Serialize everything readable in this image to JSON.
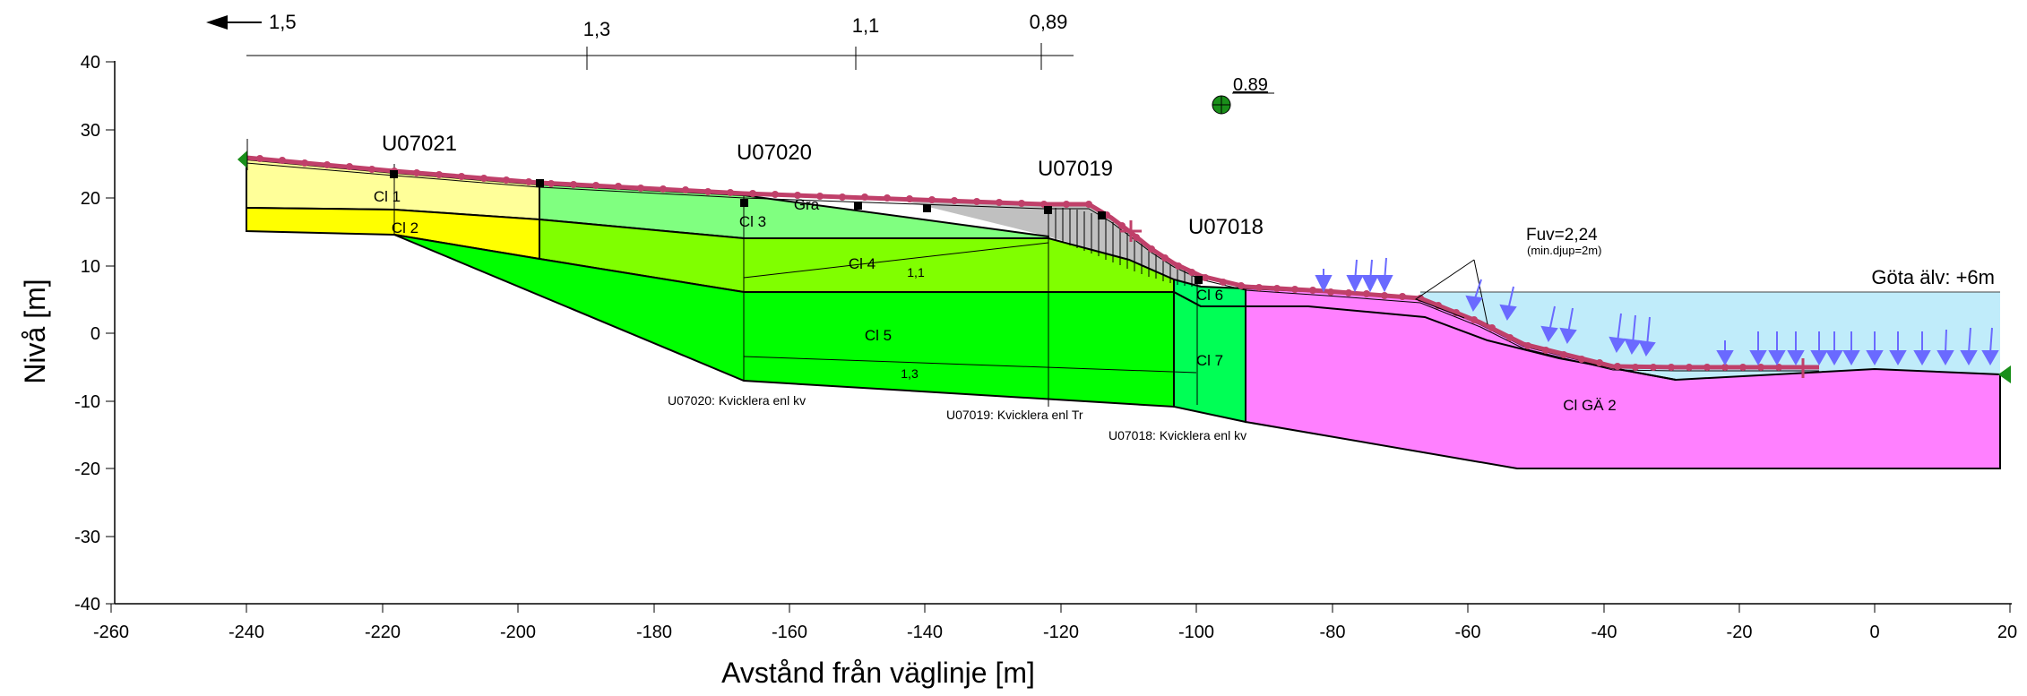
{
  "axes": {
    "x_label": "Avstånd från väglinje [m]",
    "y_label": "Nivå [m]",
    "x_ticks": [
      "-260",
      "-240",
      "-220",
      "-200",
      "-180",
      "-160",
      "-140",
      "-120",
      "-100",
      "-80",
      "-60",
      "-40",
      "-20",
      "0",
      "20"
    ],
    "y_ticks": [
      "40",
      "30",
      "20",
      "10",
      "0",
      "-10",
      "-20",
      "-30",
      "-40"
    ],
    "x_range": [
      -260,
      20
    ],
    "y_range": [
      -40,
      40
    ]
  },
  "safety_scale": {
    "labels": [
      "1,5",
      "1,3",
      "1,1",
      "0,89"
    ]
  },
  "critical_center": {
    "label": "0.89"
  },
  "boreholes": [
    "U07021",
    "U07020",
    "U07019",
    "U07018"
  ],
  "layers": {
    "cl1": "Cl 1",
    "cl2": "Cl 2",
    "cl3": "Cl 3",
    "cl4": "Cl 4",
    "cl5": "Cl 5",
    "cl6": "Cl 6",
    "cl7": "Cl 7",
    "gra": "Gra",
    "clga2": "Cl GÄ 2"
  },
  "inner_labels": {
    "a": "1,1",
    "b": "1,3"
  },
  "profile_notes": [
    "U07020: Kvicklera enl kv",
    "U07019: Kvicklera enl Tr",
    "U07018: Kvicklera enl kv"
  ],
  "river": {
    "label": "Göta älv: +6m",
    "level": 6
  },
  "fuv": {
    "value": "Fuv=2,24",
    "note": "(min.djup=2m)"
  },
  "colors": {
    "cl1": "#ffff99",
    "cl2": "#ffff00",
    "cl3": "#80ff80",
    "cl4": "#80ff00",
    "cl5": "#00ff00",
    "cl6": "#00ff66",
    "clga2": "#ff80ff",
    "fill": "#c0c0c0",
    "water": "#c0ecfa",
    "surface": "#c0406a",
    "load_arrow": "#6a6aff"
  }
}
